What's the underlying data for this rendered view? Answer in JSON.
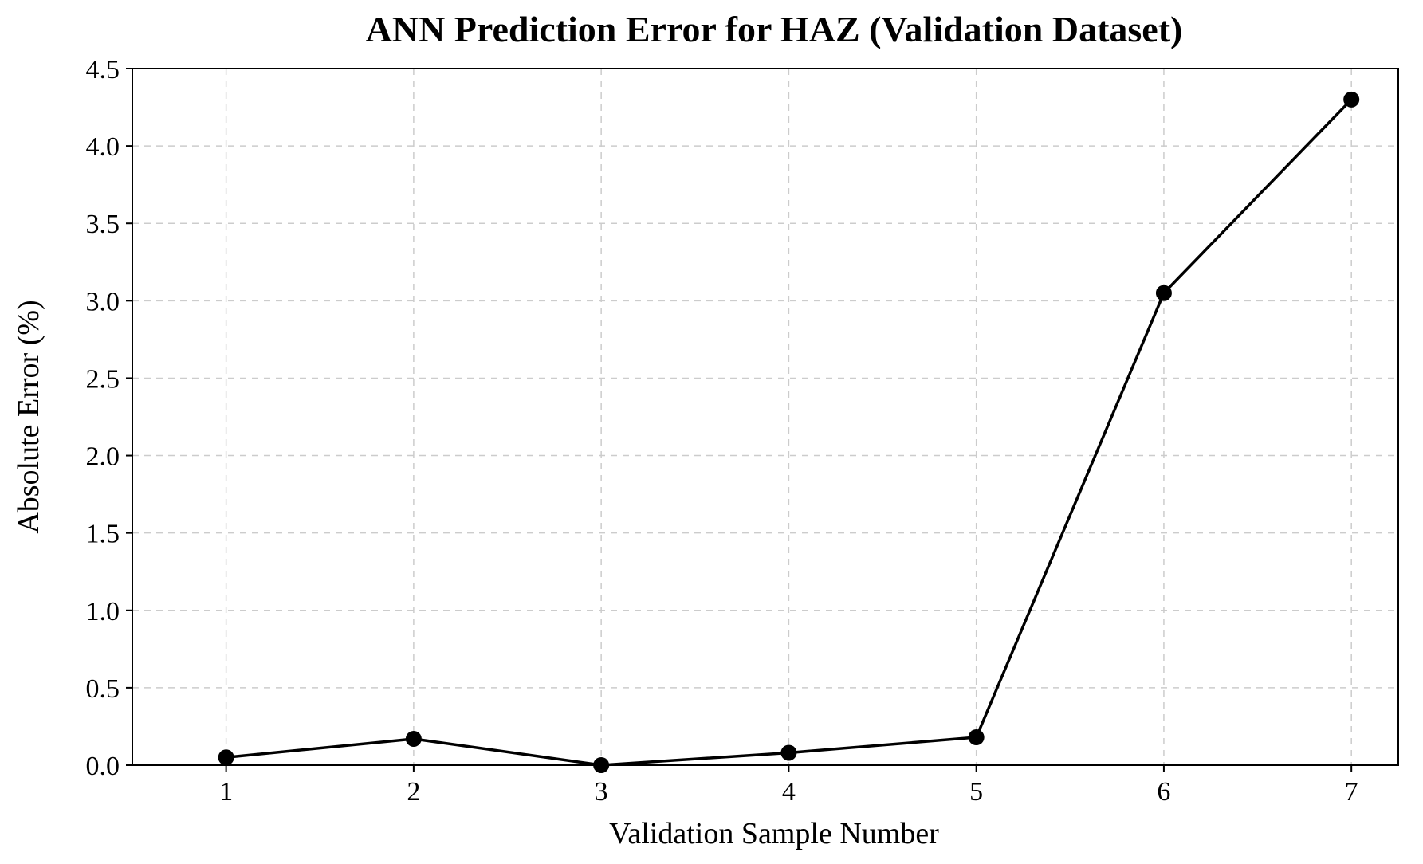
{
  "chart_data": {
    "type": "line",
    "title": "ANN Prediction Error for HAZ (Validation Dataset)",
    "xlabel": "Validation Sample Number",
    "ylabel": "Absolute Error (%)",
    "x": [
      1,
      2,
      3,
      4,
      5,
      6,
      7
    ],
    "series": [
      {
        "values": [
          0.05,
          0.17,
          0.0,
          0.08,
          0.18,
          3.05,
          4.3
        ],
        "color": "#000000"
      }
    ],
    "xlim": [
      0.5,
      7.25
    ],
    "ylim": [
      0.0,
      4.5
    ],
    "xticks": [
      "1",
      "2",
      "3",
      "4",
      "5",
      "6",
      "7"
    ],
    "yticks": [
      "0.0",
      "0.5",
      "1.0",
      "1.5",
      "2.0",
      "2.5",
      "3.0",
      "3.5",
      "4.0",
      "4.5"
    ],
    "grid": true,
    "legend": "none"
  }
}
